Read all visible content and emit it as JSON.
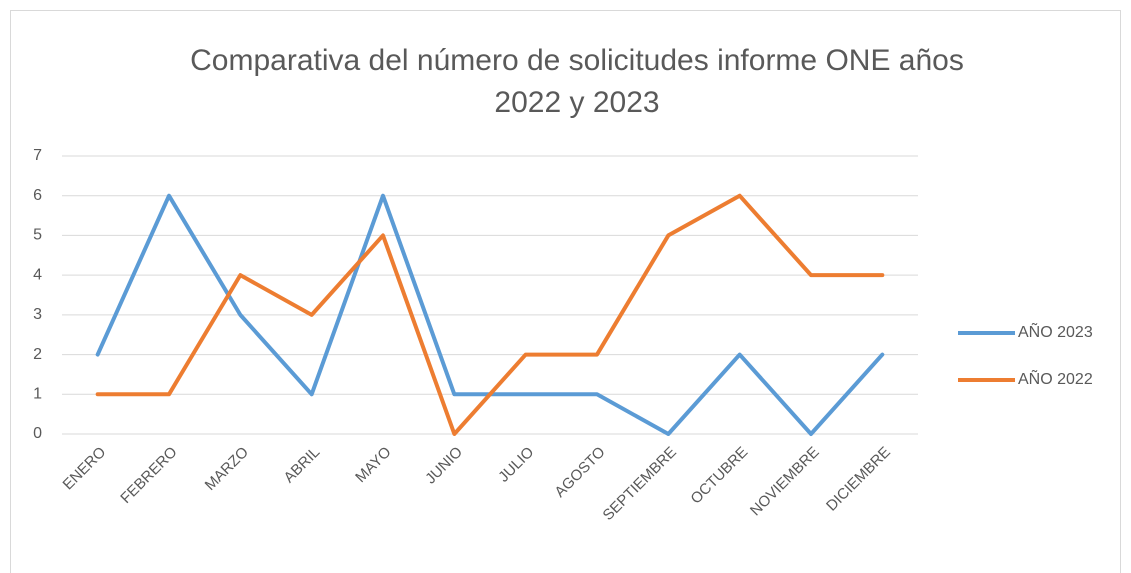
{
  "chart_data": {
    "type": "line",
    "title": "Comparativa del número de solicitudes informe ONE años 2022 y 2023",
    "categories": [
      "ENERO",
      "FEBRERO",
      "MARZO",
      "ABRIL",
      "MAYO",
      "JUNIO",
      "JULIO",
      "AGOSTO",
      "SEPTIEMBRE",
      "OCTUBRE",
      "NOVIEMBRE",
      "DICIEMBRE"
    ],
    "series": [
      {
        "name": "AÑO 2023",
        "color": "#5b9bd5",
        "values": [
          2,
          6,
          3,
          1,
          6,
          1,
          1,
          1,
          0,
          2,
          0,
          2
        ]
      },
      {
        "name": "AÑO 2022",
        "color": "#ed7d31",
        "values": [
          1,
          1,
          4,
          3,
          5,
          0,
          2,
          2,
          5,
          6,
          4,
          4
        ]
      }
    ],
    "ylim": [
      0,
      7
    ],
    "yticks": [
      0,
      1,
      2,
      3,
      4,
      5,
      6,
      7
    ],
    "grid": true,
    "legend": "right"
  }
}
